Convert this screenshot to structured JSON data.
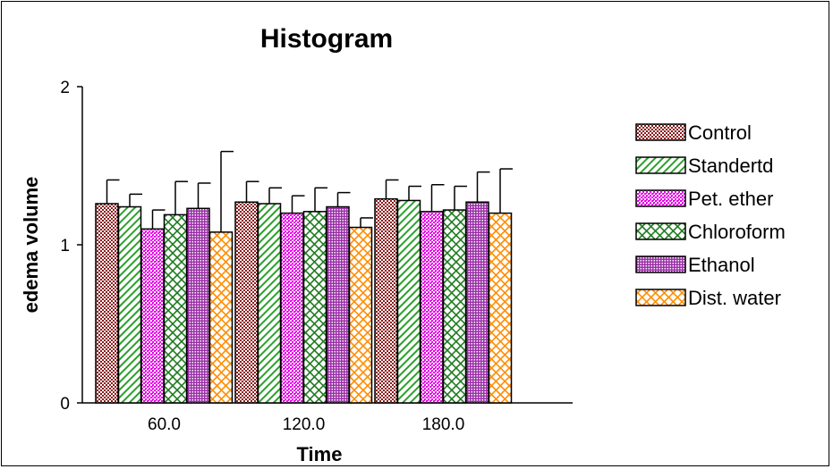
{
  "chart_data": {
    "type": "bar",
    "title": "Histogram",
    "xlabel": "Time",
    "ylabel": "edema volume",
    "ylim": [
      0,
      2
    ],
    "yticks": [
      "0",
      "1",
      "2"
    ],
    "categories": [
      "60.0",
      "120.0",
      "180.0"
    ],
    "legend_position": "right",
    "grid": false,
    "series": [
      {
        "name": "Control",
        "values": [
          1.26,
          1.27,
          1.29
        ],
        "errors": [
          0.15,
          0.13,
          0.12
        ],
        "color": "#8b1a1a",
        "pattern": "checker"
      },
      {
        "name": "Standertd",
        "values": [
          1.24,
          1.26,
          1.28
        ],
        "errors": [
          0.08,
          0.1,
          0.09
        ],
        "color": "#2ca02c",
        "pattern": "diagonal"
      },
      {
        "name": "Pet. ether",
        "values": [
          1.1,
          1.2,
          1.21
        ],
        "errors": [
          0.12,
          0.11,
          0.17
        ],
        "color": "#e600e6",
        "pattern": "fine-checker"
      },
      {
        "name": "Chloroform",
        "values": [
          1.19,
          1.21,
          1.22
        ],
        "errors": [
          0.21,
          0.15,
          0.15
        ],
        "color": "#1e7a1e",
        "pattern": "crosshatch"
      },
      {
        "name": "Ethanol",
        "values": [
          1.23,
          1.24,
          1.27
        ],
        "errors": [
          0.16,
          0.09,
          0.19
        ],
        "color": "#9b30a8",
        "pattern": "vertical"
      },
      {
        "name": "Dist. water",
        "values": [
          1.08,
          1.11,
          1.2
        ],
        "errors": [
          0.51,
          0.06,
          0.28
        ],
        "color": "#ff8c00",
        "pattern": "crosshatch"
      }
    ]
  }
}
